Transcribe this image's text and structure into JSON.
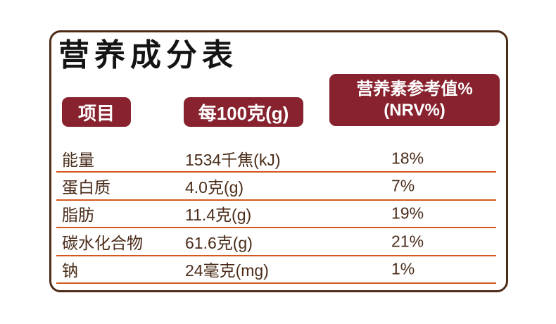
{
  "card": {
    "title": "营养成分表",
    "colors": {
      "border": "#4e2c17",
      "badge_bg": "#87222e",
      "badge_text": "#ffffff",
      "separator_line": "#d4571e",
      "row_text": "#4a2c19",
      "title_text": "#141414",
      "background": "#ffffff"
    }
  },
  "header": {
    "item_label": "项目",
    "per100g_label": "每100克(g)",
    "nrv_label_line1": "营养素参考值%",
    "nrv_label_line2": "(NRV%)"
  },
  "rows": [
    {
      "label": "能量",
      "value": "1534千焦(kJ)",
      "nrv": "18%"
    },
    {
      "label": "蛋白质",
      "value": "4.0克(g)",
      "nrv": "7%"
    },
    {
      "label": "脂肪",
      "value": "11.4克(g)",
      "nrv": "19%"
    },
    {
      "label": "碳水化合物",
      "value": "61.6克(g)",
      "nrv": "21%"
    },
    {
      "label": "钠",
      "value": "24毫克(mg)",
      "nrv": "1%"
    }
  ]
}
